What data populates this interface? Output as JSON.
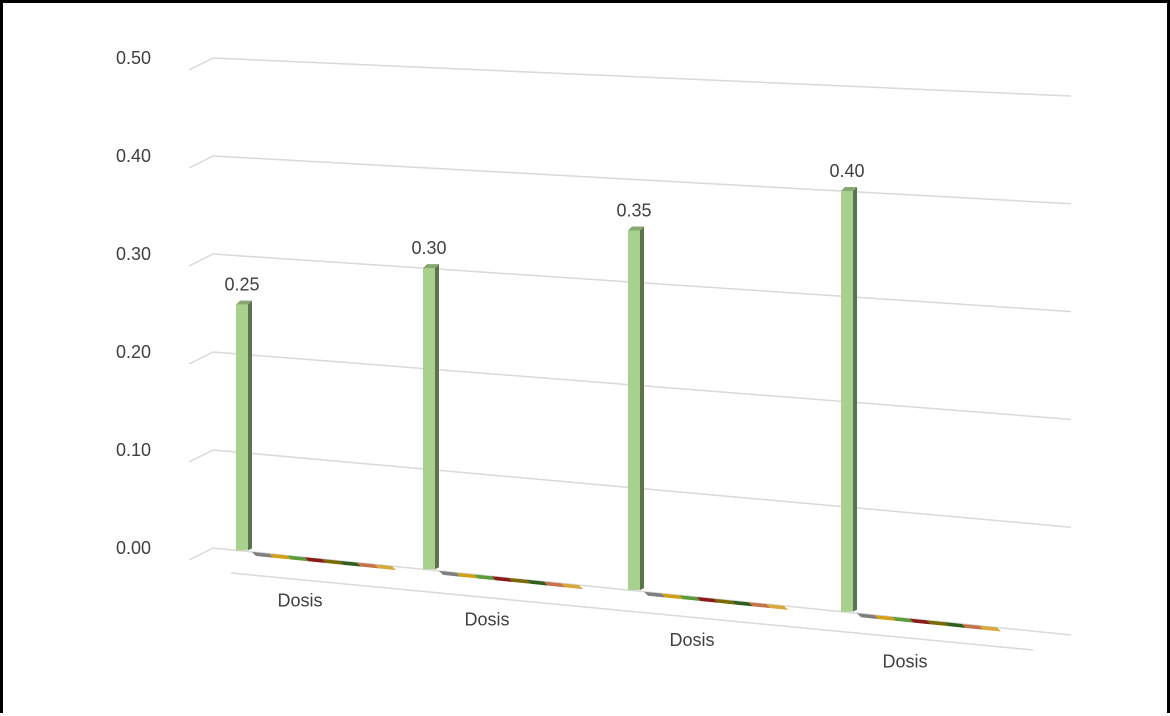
{
  "chart_data": {
    "type": "bar",
    "categories": [
      "Dosis",
      "Dosis",
      "Dosis",
      "Dosis"
    ],
    "series": [
      {
        "values": [
          0.25,
          0.3,
          0.35,
          0.4
        ],
        "data_labels": [
          "0.25",
          "0.30",
          "0.35",
          "0.40"
        ],
        "color": "#a9d18e"
      },
      {
        "values": [
          0,
          0,
          0,
          0
        ],
        "color": "#7f7f7f"
      },
      {
        "values": [
          0,
          0,
          0,
          0
        ],
        "color": "#d4a017"
      },
      {
        "values": [
          0,
          0,
          0,
          0
        ],
        "color": "#5b9b3a"
      },
      {
        "values": [
          0,
          0,
          0,
          0
        ],
        "color": "#8b1a1a"
      },
      {
        "values": [
          0,
          0,
          0,
          0
        ],
        "color": "#7a6a00"
      },
      {
        "values": [
          0,
          0,
          0,
          0
        ],
        "color": "#2f5e1f"
      },
      {
        "values": [
          0,
          0,
          0,
          0
        ],
        "color": "#c8724a"
      },
      {
        "values": [
          0,
          0,
          0,
          0
        ],
        "color": "#d8a838"
      }
    ],
    "y_ticks": [
      "0.00",
      "0.10",
      "0.20",
      "0.30",
      "0.40",
      "0.50"
    ],
    "ylim": [
      0,
      0.5
    ],
    "grid": true,
    "view": "3d-perspective"
  }
}
